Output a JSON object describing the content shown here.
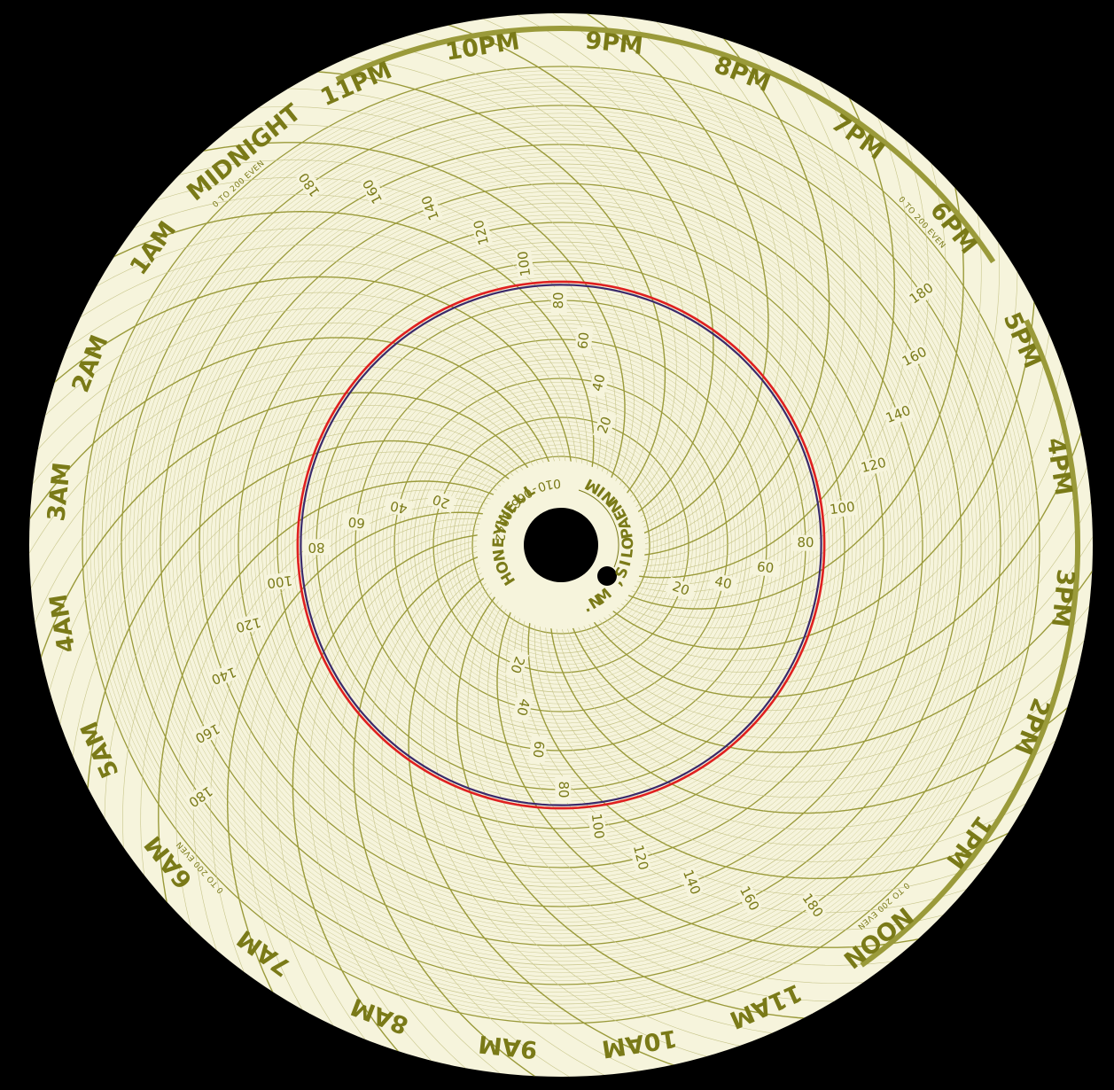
{
  "chart_data": {
    "type": "line",
    "chart_kind": "circular chart recorder paper",
    "range_note": "0 TO 200 EVEN",
    "hour_labels": [
      "MIDNIGHT",
      "1AM",
      "2AM",
      "3AM",
      "4AM",
      "5AM",
      "6AM",
      "7AM",
      "8AM",
      "9AM",
      "10AM",
      "11AM",
      "NOON",
      "1PM",
      "2PM",
      "3PM",
      "4PM",
      "5PM",
      "6PM",
      "7PM",
      "8PM",
      "9PM",
      "10PM",
      "11PM"
    ],
    "scale_labels": [
      "20",
      "40",
      "60",
      "80",
      "100",
      "120",
      "140",
      "160",
      "180"
    ],
    "scale_range": [
      0,
      200
    ],
    "time_range_hours": 24,
    "gridlines": true,
    "series": [
      {
        "values": [
          88,
          88,
          88,
          88,
          88,
          88,
          88,
          88,
          88,
          88,
          88,
          88,
          88,
          88,
          88,
          88,
          88,
          88,
          88,
          88,
          88,
          88,
          88,
          88,
          88
        ]
      }
    ],
    "brand": "HONEYWELL",
    "city": "MINNEAPOLIS, MN.",
    "part_number": "24001660-010",
    "colors": {
      "paper": "#f6f4dc",
      "grid": "#9a9a3a",
      "grid_light": "#c7c58a",
      "label": "#7a7a18",
      "trace_red": "#e02020",
      "trace_ink": "#3a2a6a",
      "background": "#000000"
    }
  }
}
